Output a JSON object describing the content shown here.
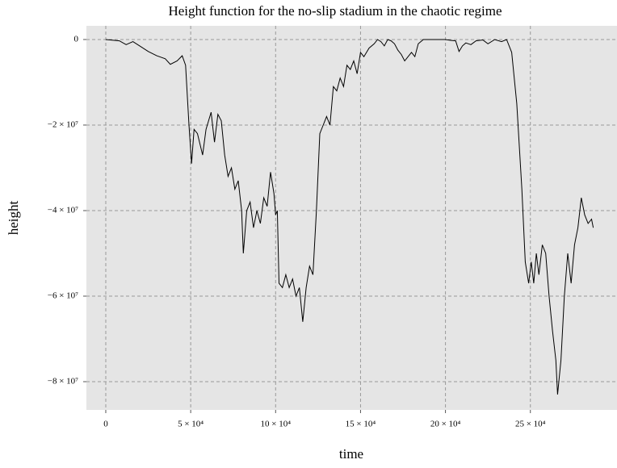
{
  "chart_data": {
    "type": "line",
    "title": "Height function for the no-slip stadium in the chaotic regime",
    "xlabel": "time",
    "ylabel": "height",
    "xlim": [
      -11400,
      301000
    ],
    "ylim": [
      -86600000,
      3200000
    ],
    "xticks": [
      0,
      {
        "value": 50000,
        "label": "5 × 10⁴"
      },
      {
        "value": 100000,
        "label": "10 × 10⁴"
      },
      {
        "value": 150000,
        "label": "15 × 10⁴"
      },
      {
        "value": 200000,
        "label": "20 × 10⁴"
      },
      {
        "value": 250000,
        "label": "25 × 10⁴"
      }
    ],
    "yticks": [
      0,
      {
        "value": -20000000,
        "label": "−2 × 10⁷"
      },
      {
        "value": -40000000,
        "label": "−4 × 10⁷"
      },
      {
        "value": -60000000,
        "label": "−6 × 10⁷"
      },
      {
        "value": -80000000,
        "label": "−8 × 10⁷"
      }
    ],
    "grid": true,
    "series": [
      {
        "color": "#000000",
        "x": [
          0,
          8000,
          12000,
          16000,
          20000,
          25000,
          30000,
          35000,
          38000,
          42000,
          45000,
          47000,
          49000,
          50500,
          52000,
          54000,
          57000,
          59000,
          62000,
          64000,
          66000,
          68000,
          70000,
          72000,
          74000,
          76000,
          78000,
          80000,
          81000,
          83000,
          85000,
          87000,
          89000,
          91000,
          93000,
          95000,
          97000,
          99000,
          100000,
          101000,
          102000,
          104000,
          106000,
          108000,
          110000,
          112000,
          114000,
          116000,
          118000,
          120000,
          122000,
          124000,
          126000,
          128000,
          130000,
          132000,
          134000,
          136000,
          138000,
          140000,
          142000,
          144000,
          146000,
          148000,
          150000,
          152000,
          155000,
          158000,
          160000,
          162000,
          164000,
          166000,
          168000,
          170000,
          172000,
          174000,
          176000,
          178000,
          180000,
          182000,
          184000,
          187000,
          190000,
          194000,
          197000,
          200000,
          203000,
          206000,
          208000,
          210000,
          212000,
          215000,
          218000,
          222000,
          225000,
          229000,
          233000,
          236000,
          239000,
          242000,
          245000,
          247000,
          249000,
          250500,
          252000,
          253500,
          255000,
          257000,
          259000,
          261000,
          263000,
          265000,
          266000,
          268000,
          270000,
          272000,
          274000,
          276000,
          278000,
          280000,
          282000,
          284000,
          286000,
          287000
        ],
        "values": [
          0,
          -300000,
          -1200000,
          -500000,
          -1500000,
          -2800000,
          -3800000,
          -4500000,
          -5800000,
          -5000000,
          -3800000,
          -6000000,
          -20000000,
          -29000000,
          -21000000,
          -22000000,
          -27000000,
          -21000000,
          -17000000,
          -24000000,
          -17500000,
          -19000000,
          -27000000,
          -32000000,
          -30000000,
          -35000000,
          -33000000,
          -40000000,
          -50000000,
          -40000000,
          -38000000,
          -44000000,
          -40000000,
          -43000000,
          -37000000,
          -39000000,
          -31000000,
          -36000000,
          -41000000,
          -40000000,
          -57000000,
          -58000000,
          -55000000,
          -58000000,
          -56000000,
          -60000000,
          -58000000,
          -66000000,
          -58000000,
          -53000000,
          -55000000,
          -40000000,
          -22000000,
          -20000000,
          -18000000,
          -20000000,
          -11000000,
          -12000000,
          -9000000,
          -11000000,
          -6000000,
          -7000000,
          -5000000,
          -8000000,
          -3000000,
          -4000000,
          -2000000,
          -1000000,
          0,
          -500000,
          -1500000,
          0,
          -300000,
          -1000000,
          -2500000,
          -3500000,
          -5000000,
          -4000000,
          -3000000,
          -4000000,
          -1000000,
          0,
          0,
          0,
          0,
          0,
          -200000,
          -300000,
          -2800000,
          -1500000,
          -800000,
          -1200000,
          -300000,
          -100000,
          -1000000,
          0,
          -500000,
          0,
          -3000000,
          -15000000,
          -35000000,
          -52000000,
          -57000000,
          -52000000,
          -57000000,
          -50000000,
          -55000000,
          -48000000,
          -50000000,
          -60000000,
          -68000000,
          -75000000,
          -83000000,
          -75000000,
          -60000000,
          -50000000,
          -57000000,
          -48000000,
          -44000000,
          -37000000,
          -41000000,
          -43000000,
          -42000000,
          -44000000
        ]
      }
    ]
  }
}
